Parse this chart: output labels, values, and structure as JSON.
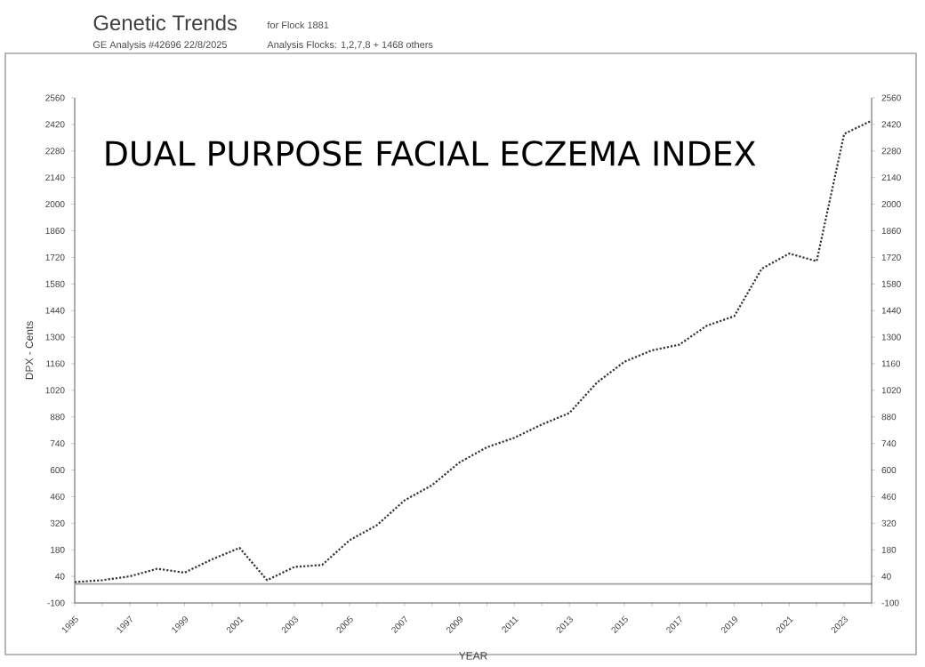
{
  "chart_data": {
    "type": "line",
    "title": "DUAL PURPOSE FACIAL ECZEMA INDEX",
    "subtitle": "Genetic Trends",
    "annotations": [
      "GE Analysis #42696 22/8/2025",
      "for Flock 1881",
      "Analysis Flocks: 1,2,7,8 + 1468 others"
    ],
    "xlabel": "YEAR",
    "ylabel": "DPX - Cents",
    "x": [
      1995,
      1996,
      1997,
      1998,
      1999,
      2000,
      2001,
      2002,
      2003,
      2004,
      2005,
      2006,
      2007,
      2008,
      2009,
      2010,
      2011,
      2012,
      2013,
      2014,
      2015,
      2016,
      2017,
      2018,
      2019,
      2020,
      2021,
      2022,
      2023,
      2024
    ],
    "values": [
      10,
      20,
      40,
      80,
      60,
      130,
      190,
      20,
      90,
      100,
      230,
      310,
      440,
      520,
      640,
      720,
      770,
      840,
      900,
      1060,
      1170,
      1230,
      1260,
      1360,
      1410,
      1660,
      1740,
      1700,
      2370,
      2440
    ],
    "color": "#333333",
    "line_style": "dotted",
    "marker": "none",
    "xlim": [
      1995,
      2024
    ],
    "xticks": [
      1995,
      {
        "value": 1996,
        "label": null
      },
      1997,
      {
        "value": 1998,
        "label": null
      },
      1999,
      {
        "value": 2000,
        "label": null
      },
      2001,
      {
        "value": 2002,
        "label": null
      },
      2003,
      {
        "value": 2004,
        "label": null
      },
      2005,
      {
        "value": 2006,
        "label": null
      },
      2007,
      {
        "value": 2008,
        "label": null
      },
      2009,
      {
        "value": 2010,
        "label": null
      },
      2011,
      {
        "value": 2012,
        "label": null
      },
      2013,
      {
        "value": 2014,
        "label": null
      },
      2015,
      {
        "value": 2016,
        "label": null
      },
      2017,
      {
        "value": 2018,
        "label": null
      },
      2019,
      {
        "value": 2020,
        "label": null
      },
      2021,
      {
        "value": 2022,
        "label": null
      },
      2023,
      {
        "value": 2024,
        "label": null
      }
    ],
    "ylim": [
      -100,
      2560
    ],
    "yticks": [
      -100,
      40,
      180,
      320,
      460,
      600,
      740,
      880,
      1020,
      1160,
      1300,
      1440,
      1580,
      1720,
      1860,
      2000,
      2140,
      2280,
      2420,
      2560
    ],
    "y2lim": [
      -100,
      2560
    ],
    "y2ticks": [
      -100,
      40,
      180,
      320,
      460,
      600,
      740,
      880,
      1020,
      1160,
      1300,
      1440,
      1580,
      1720,
      1860,
      2000,
      2140,
      2280,
      2420,
      2560
    ],
    "ref_lines": [
      {
        "axis": "y",
        "value": 0,
        "color": "#a0a0a0"
      }
    ]
  }
}
